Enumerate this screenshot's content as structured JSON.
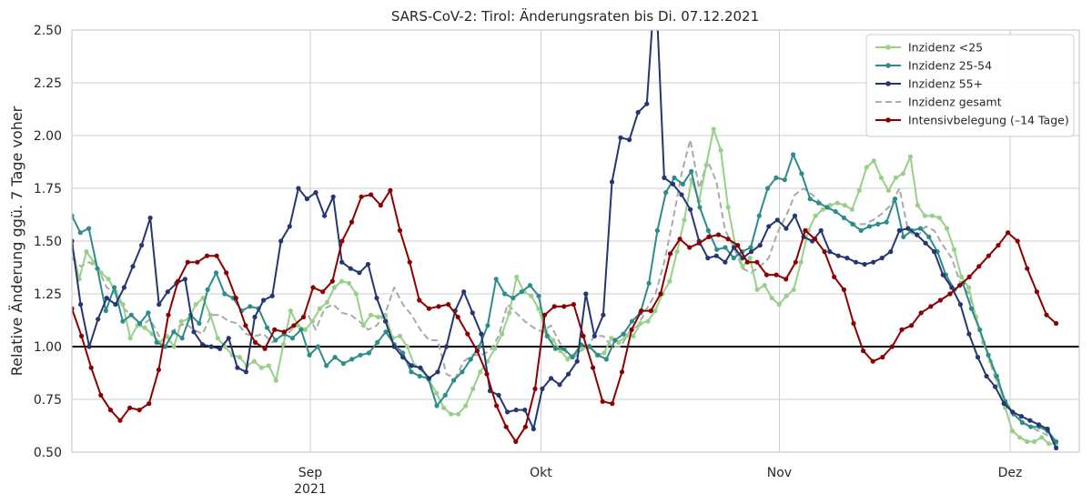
{
  "chart_data": {
    "type": "line",
    "title": "SARS-CoV-2: Tirol: Änderungsraten bis Di. 07.12.2021",
    "ylabel": "Relative Änderung ggü. 7 Tage voher",
    "xlabel": "",
    "x_start": "2021-08-01",
    "x_end": "2021-12-07",
    "xlim": [
      "2021-08-01",
      "2021-12-10"
    ],
    "ylim": [
      0.5,
      2.5
    ],
    "yticks": [
      "0.50",
      "0.75",
      "1.00",
      "1.25",
      "1.50",
      "1.75",
      "2.00",
      "2.25",
      "2.50"
    ],
    "xticks": [
      {
        "date": "2021-09-01",
        "label": "Sep",
        "label2": "2021"
      },
      {
        "date": "2021-10-01",
        "label": "Okt",
        "label2": ""
      },
      {
        "date": "2021-11-01",
        "label": "Nov",
        "label2": ""
      },
      {
        "date": "2021-12-01",
        "label": "Dez",
        "label2": ""
      }
    ],
    "reference_line": 1.0,
    "grid": true,
    "legend_position": "top-right",
    "series": [
      {
        "name": "Inzidenz <25",
        "color": "#98d08a",
        "style": "line-marker",
        "values": [
          1.48,
          1.32,
          1.45,
          1.4,
          1.35,
          1.32,
          1.26,
          1.2,
          1.04,
          1.1,
          1.09,
          1.06,
          1.02,
          1.05,
          1.0,
          1.12,
          1.13,
          1.2,
          1.23,
          1.15,
          1.04,
          1.0,
          0.96,
          0.95,
          0.91,
          0.93,
          0.9,
          0.91,
          0.84,
          1.01,
          1.17,
          1.1,
          1.08,
          1.12,
          1.18,
          1.21,
          1.28,
          1.31,
          1.3,
          1.25,
          1.1,
          1.15,
          1.14,
          1.15,
          1.04,
          1.05,
          1.0,
          0.91,
          0.89,
          0.84,
          0.78,
          0.71,
          0.68,
          0.68,
          0.72,
          0.8,
          0.88,
          0.93,
          0.99,
          1.06,
          1.16,
          1.33,
          1.26,
          1.24,
          1.18,
          1.07,
          1.03,
          0.98,
          0.94,
          0.96,
          0.99,
          1.0,
          0.96,
          0.97,
          1.04,
          1.02,
          1.05,
          1.05,
          1.11,
          1.12,
          1.17,
          1.25,
          1.31,
          1.45,
          1.6,
          1.79,
          1.69,
          1.86,
          2.03,
          1.93,
          1.66,
          1.48,
          1.38,
          1.42,
          1.27,
          1.29,
          1.23,
          1.2,
          1.24,
          1.27,
          1.4,
          1.55,
          1.62,
          1.65,
          1.67,
          1.68,
          1.67,
          1.65,
          1.74,
          1.85,
          1.88,
          1.8,
          1.74,
          1.8,
          1.82,
          1.9,
          1.67,
          1.62,
          1.62,
          1.61,
          1.56,
          1.46,
          1.33,
          1.28,
          1.14,
          1.02,
          0.93,
          0.84,
          0.71,
          0.6,
          0.57,
          0.55,
          0.55,
          0.57,
          0.54,
          0.54
        ]
      },
      {
        "name": "Inzidenz 25-54",
        "color": "#2c8c89",
        "style": "line-marker",
        "values": [
          1.62,
          1.54,
          1.56,
          1.37,
          1.17,
          1.28,
          1.12,
          1.15,
          1.11,
          1.16,
          1.02,
          1.0,
          1.07,
          1.04,
          1.15,
          1.11,
          1.27,
          1.35,
          1.25,
          1.23,
          1.17,
          1.19,
          1.18,
          1.09,
          1.03,
          1.06,
          1.04,
          1.08,
          0.96,
          1.0,
          0.91,
          0.95,
          0.92,
          0.94,
          0.96,
          0.97,
          1.02,
          1.07,
          1.01,
          0.97,
          0.88,
          0.86,
          0.85,
          0.72,
          0.77,
          0.84,
          0.88,
          0.94,
          1.0,
          1.1,
          1.32,
          1.25,
          1.23,
          1.26,
          1.29,
          1.24,
          1.05,
          0.99,
          0.99,
          0.95,
          1.01,
          1.0,
          0.96,
          0.94,
          1.03,
          1.06,
          1.12,
          1.16,
          1.3,
          1.55,
          1.73,
          1.8,
          1.77,
          1.83,
          1.66,
          1.55,
          1.46,
          1.47,
          1.42,
          1.45,
          1.47,
          1.62,
          1.75,
          1.8,
          1.79,
          1.91,
          1.82,
          1.7,
          1.68,
          1.66,
          1.64,
          1.61,
          1.58,
          1.55,
          1.57,
          1.58,
          1.59,
          1.7,
          1.52,
          1.55,
          1.56,
          1.52,
          1.45,
          1.34,
          1.27,
          1.3,
          1.18,
          1.08,
          0.96,
          0.86,
          0.74,
          0.68,
          0.64,
          0.62,
          0.62,
          0.6,
          0.55
        ]
      },
      {
        "name": "Inzidenz 55+",
        "color": "#253773",
        "style": "line-marker",
        "values": [
          1.5,
          1.2,
          1.0,
          1.13,
          1.23,
          1.2,
          1.28,
          1.38,
          1.48,
          1.61,
          1.2,
          1.26,
          1.3,
          1.32,
          1.07,
          1.01,
          1.0,
          0.99,
          1.04,
          0.9,
          0.88,
          1.14,
          1.22,
          1.24,
          1.5,
          1.57,
          1.75,
          1.7,
          1.73,
          1.62,
          1.71,
          1.4,
          1.37,
          1.35,
          1.39,
          1.23,
          1.12,
          1.0,
          0.95,
          0.91,
          0.9,
          0.85,
          0.88,
          1.0,
          1.17,
          1.26,
          1.16,
          1.06,
          0.79,
          0.77,
          0.69,
          0.7,
          0.7,
          0.61,
          0.8,
          0.85,
          0.82,
          0.87,
          0.93,
          1.25,
          1.05,
          1.15,
          1.78,
          1.99,
          1.98,
          2.11,
          2.15,
          2.75,
          1.8,
          1.77,
          1.72,
          1.65,
          1.5,
          1.42,
          1.43,
          1.4,
          1.47,
          1.42,
          1.45,
          1.48,
          1.57,
          1.6,
          1.56,
          1.62,
          1.52,
          1.5,
          1.55,
          1.45,
          1.43,
          1.42,
          1.4,
          1.39,
          1.4,
          1.42,
          1.45,
          1.55,
          1.56,
          1.53,
          1.49,
          1.45,
          1.34,
          1.28,
          1.2,
          1.06,
          0.95,
          0.86,
          0.81,
          0.73,
          0.69,
          0.67,
          0.65,
          0.63,
          0.61,
          0.52
        ]
      },
      {
        "name": "Inzidenz gesamt",
        "color": "#a9a9a9",
        "style": "dashed",
        "values": [
          1.42,
          1.38,
          1.4,
          1.37,
          1.28,
          1.25,
          1.18,
          1.14,
          1.1,
          1.13,
          1.05,
          1.04,
          1.09,
          1.11,
          1.08,
          1.06,
          1.15,
          1.15,
          1.12,
          1.11,
          1.06,
          1.05,
          1.06,
          1.02,
          1.05,
          1.07,
          1.12,
          1.16,
          1.08,
          1.18,
          1.2,
          1.16,
          1.15,
          1.12,
          1.08,
          1.1,
          1.16,
          1.28,
          1.2,
          1.15,
          1.08,
          1.03,
          1.03,
          0.87,
          0.85,
          0.93,
          0.96,
          0.96,
          0.98,
          1.05,
          1.2,
          1.16,
          1.12,
          1.09,
          1.07,
          1.1,
          1.02,
          0.95,
          0.97,
          0.99,
          1.05,
          1.05,
          1.0,
          1.0,
          1.07,
          1.1,
          1.18,
          1.25,
          1.4,
          1.6,
          1.82,
          1.98,
          1.75,
          1.88,
          1.78,
          1.55,
          1.47,
          1.37,
          1.35,
          1.38,
          1.42,
          1.54,
          1.62,
          1.72,
          1.75,
          1.72,
          1.68,
          1.65,
          1.63,
          1.6,
          1.58,
          1.58,
          1.6,
          1.63,
          1.67,
          1.75,
          1.55,
          1.52,
          1.57,
          1.55,
          1.48,
          1.42,
          1.3,
          1.25,
          1.1,
          0.98,
          0.85,
          0.76,
          0.68,
          0.65,
          0.62,
          0.6,
          0.58,
          0.55
        ]
      },
      {
        "name": "Intensivbelegung (–14 Tage)",
        "color": "#8b0000",
        "style": "line-marker",
        "values": [
          1.18,
          1.05,
          0.9,
          0.77,
          0.7,
          0.65,
          0.71,
          0.7,
          0.73,
          0.89,
          1.15,
          1.31,
          1.4,
          1.4,
          1.43,
          1.43,
          1.35,
          1.23,
          1.1,
          1.02,
          0.99,
          1.08,
          1.07,
          1.1,
          1.14,
          1.28,
          1.26,
          1.31,
          1.5,
          1.59,
          1.71,
          1.72,
          1.67,
          1.74,
          1.55,
          1.4,
          1.22,
          1.18,
          1.19,
          1.2,
          1.14,
          1.06,
          0.98,
          0.87,
          0.72,
          0.62,
          0.55,
          0.62,
          0.8,
          1.15,
          1.19,
          1.19,
          1.2,
          1.05,
          0.9,
          0.74,
          0.73,
          0.88,
          1.08,
          1.17,
          1.17,
          1.25,
          1.44,
          1.51,
          1.47,
          1.49,
          1.52,
          1.53,
          1.51,
          1.48,
          1.4,
          1.4,
          1.34,
          1.34,
          1.32,
          1.4,
          1.55,
          1.51,
          1.45,
          1.33,
          1.27,
          1.11,
          0.98,
          0.93,
          0.95,
          1.0,
          1.08,
          1.1,
          1.16,
          1.19,
          1.22,
          1.25,
          1.29,
          1.33,
          1.38,
          1.43,
          1.48,
          1.54,
          1.5,
          1.37,
          1.26,
          1.15,
          1.11
        ]
      }
    ]
  }
}
